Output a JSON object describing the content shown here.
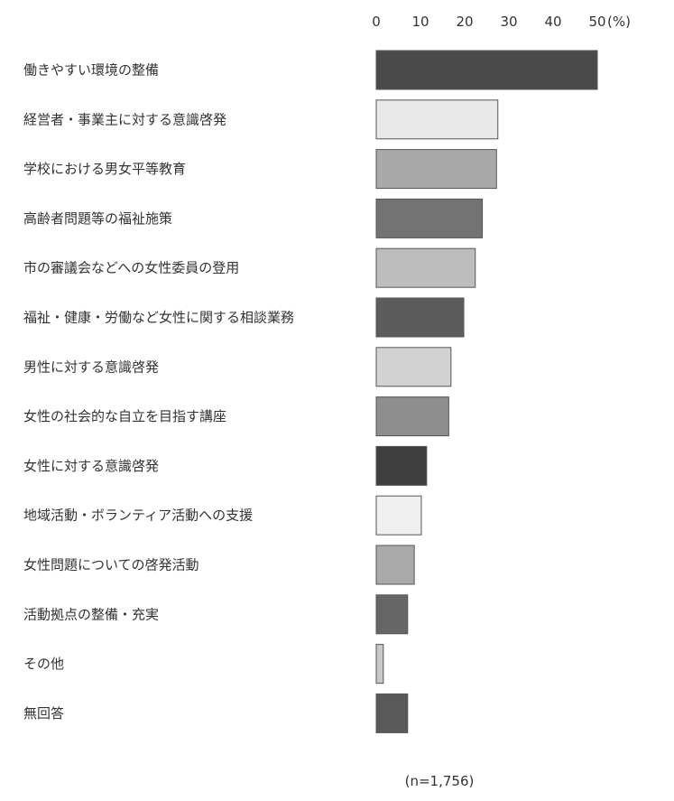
{
  "chart_data": {
    "type": "bar",
    "orientation": "horizontal",
    "unit": "(%)",
    "x_ticks": [
      "0",
      "10",
      "20",
      "30",
      "40",
      "50"
    ],
    "xlim": [
      0,
      50
    ],
    "grid": false,
    "categories": [
      "働きやすい環境の整備",
      "経営者・事業主に対する意識啓発",
      "学校における男女平等教育",
      "高齢者問題等の福祉施策",
      "市の審議会などへの女性委員の登用",
      "福祉・健康・労働など女性に関する相談業務",
      "男性に対する意識啓発",
      "女性の社会的な自立を目指す講座",
      "女性に対する意識啓発",
      "地域活動・ボランティア活動への支援",
      "女性問題についての啓発活動",
      "活動拠点の整備・充実",
      "その他",
      "無回答"
    ],
    "values": [
      50.0,
      27.5,
      27.2,
      24.0,
      22.4,
      19.8,
      16.9,
      16.4,
      11.4,
      10.2,
      8.6,
      7.1,
      1.6,
      7.1
    ],
    "bar_colors": [
      "#4a4a4a",
      "#e8e8e8",
      "#a9a9a9",
      "#737373",
      "#bdbdbd",
      "#5c5c5c",
      "#d2d2d2",
      "#8e8e8e",
      "#3f3f3f",
      "#efefef",
      "#aaaaaa",
      "#666666",
      "#c8c8c8",
      "#595959"
    ],
    "note": "(n=1,756)"
  }
}
